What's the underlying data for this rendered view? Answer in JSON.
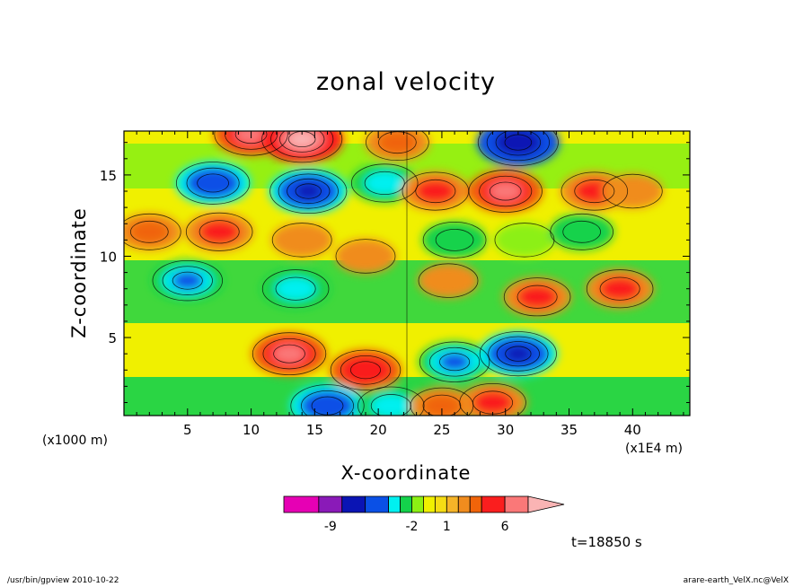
{
  "chart_data": {
    "type": "heatmap",
    "title": "zonal velocity",
    "xlabel": "X-coordinate",
    "ylabel": "Z-coordinate",
    "x_unit_note": "(x1000 m)",
    "x_unit_note2": "(x1E4 m)",
    "xlim": [
      0,
      44.5
    ],
    "ylim": [
      0.2,
      17.7
    ],
    "xticks": [
      5,
      10,
      15,
      20,
      25,
      30,
      35,
      40
    ],
    "yticks": [
      5,
      10,
      15
    ],
    "colorbar": {
      "labels": [
        {
          "value": -9,
          "text": "-9"
        },
        {
          "value": -2,
          "text": "-2"
        },
        {
          "value": 1,
          "text": "1"
        },
        {
          "value": 6,
          "text": "6"
        }
      ],
      "levels": [
        -13,
        -10,
        -8,
        -6,
        -4,
        -3,
        -2,
        -1,
        0,
        1,
        2,
        3,
        4,
        6,
        8,
        12
      ],
      "colors": [
        "#e600b4",
        "#8a1ab8",
        "#0a14b4",
        "#0a50e6",
        "#00f0f0",
        "#14d24b",
        "#8cf014",
        "#f0f000",
        "#f5dc14",
        "#f5b428",
        "#f08c1e",
        "#f0640a",
        "#fa1e1e",
        "#fa7878",
        "#fab4b4"
      ],
      "extend": "max"
    },
    "features": [
      {
        "x": 5,
        "z": 8.5,
        "value": -5
      },
      {
        "x": 13.5,
        "z": 8,
        "value": -4
      },
      {
        "x": 7,
        "z": 14.5,
        "value": -6
      },
      {
        "x": 14.5,
        "z": 14,
        "value": -7
      },
      {
        "x": 20.5,
        "z": 14.5,
        "value": -4
      },
      {
        "x": 10,
        "z": 17.5,
        "value": 6
      },
      {
        "x": 14,
        "z": 17.2,
        "value": 8
      },
      {
        "x": 21.5,
        "z": 17,
        "value": 3
      },
      {
        "x": 2,
        "z": 11.5,
        "value": 3
      },
      {
        "x": 7.5,
        "z": 11.5,
        "value": 4
      },
      {
        "x": 14,
        "z": 11,
        "value": 2
      },
      {
        "x": 19,
        "z": 10,
        "value": 2
      },
      {
        "x": 13,
        "z": 4,
        "value": 6
      },
      {
        "x": 19,
        "z": 3,
        "value": 5
      },
      {
        "x": 16,
        "z": 0.8,
        "value": -6
      },
      {
        "x": 21,
        "z": 0.8,
        "value": -4
      },
      {
        "x": 24.5,
        "z": 14,
        "value": 4
      },
      {
        "x": 30,
        "z": 14,
        "value": 6
      },
      {
        "x": 31,
        "z": 17,
        "value": -8
      },
      {
        "x": 37,
        "z": 14,
        "value": 4
      },
      {
        "x": 40,
        "z": 14,
        "value": 2
      },
      {
        "x": 26,
        "z": 11,
        "value": -3
      },
      {
        "x": 31.5,
        "z": 11,
        "value": -2
      },
      {
        "x": 36,
        "z": 11.5,
        "value": -3
      },
      {
        "x": 25.5,
        "z": 8.5,
        "value": 2
      },
      {
        "x": 32.5,
        "z": 7.5,
        "value": 4
      },
      {
        "x": 39,
        "z": 8,
        "value": 4
      },
      {
        "x": 26,
        "z": 3.5,
        "value": -5
      },
      {
        "x": 31,
        "z": 4,
        "value": -7
      },
      {
        "x": 29,
        "z": 1,
        "value": 4
      },
      {
        "x": 25,
        "z": 0.8,
        "value": 3
      }
    ]
  },
  "time_label": "t=18850 s",
  "footer_left": "/usr/bin/gpview  2010-10-22",
  "footer_right": "arare-earth_VelX.nc@VelX"
}
